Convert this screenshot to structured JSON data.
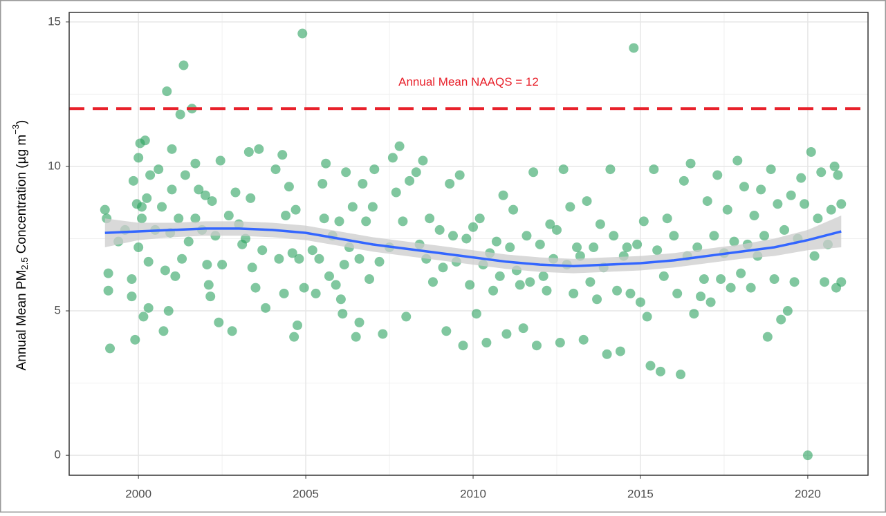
{
  "chart_data": {
    "type": "scatter",
    "ylabel": {
      "text": "Annual Mean PM",
      "sub": "2.5",
      "text2": " Concentration (µg m",
      "sup": "−3",
      "text3": ")"
    },
    "annotation": {
      "text": "Annual Mean NAAQS = 12",
      "value": 12,
      "color": "#e8202a"
    },
    "xlim": [
      1997.93,
      2021.8
    ],
    "ylim": [
      -0.69,
      15.33
    ],
    "xticks": [
      2000,
      2005,
      2010,
      2015,
      2020
    ],
    "yticks": [
      0,
      5,
      10,
      15
    ],
    "minor_xticks": [
      2002.5,
      2007.5,
      2012.5,
      2017.5
    ],
    "minor_yticks": [
      2.5,
      7.5,
      12.5
    ],
    "grid": true,
    "series": [
      {
        "color": "#2ca25f",
        "x": [
          1999.0,
          1999.05,
          1999.1,
          1999.1,
          1999.15,
          1999.4,
          1999.6,
          1999.8,
          1999.8,
          1999.85,
          1999.9,
          1999.95,
          2000.0,
          2000.0,
          2000.05,
          2000.1,
          2000.1,
          2000.15,
          2000.2,
          2000.25,
          2000.3,
          2000.3,
          2000.35,
          2000.5,
          2000.6,
          2000.7,
          2000.75,
          2000.8,
          2000.85,
          2000.9,
          2000.95,
          2001.0,
          2001.0,
          2001.1,
          2001.2,
          2001.25,
          2001.3,
          2001.35,
          2001.4,
          2001.5,
          2001.6,
          2001.7,
          2001.7,
          2001.8,
          2001.9,
          2002.0,
          2002.05,
          2002.1,
          2002.15,
          2002.2,
          2002.3,
          2002.4,
          2002.45,
          2002.5,
          2002.7,
          2002.8,
          2002.9,
          2003.0,
          2003.1,
          2003.2,
          2003.3,
          2003.35,
          2003.4,
          2003.5,
          2003.6,
          2003.7,
          2003.8,
          2004.1,
          2004.2,
          2004.3,
          2004.35,
          2004.4,
          2004.5,
          2004.6,
          2004.65,
          2004.7,
          2004.75,
          2004.8,
          2004.9,
          2004.95,
          2005.2,
          2005.3,
          2005.4,
          2005.5,
          2005.55,
          2005.6,
          2005.7,
          2005.8,
          2005.9,
          2006.0,
          2006.05,
          2006.1,
          2006.15,
          2006.2,
          2006.3,
          2006.4,
          2006.5,
          2006.6,
          2006.6,
          2006.7,
          2006.8,
          2006.9,
          2007.0,
          2007.05,
          2007.2,
          2007.3,
          2007.5,
          2007.6,
          2007.7,
          2007.8,
          2007.9,
          2008.0,
          2008.1,
          2008.3,
          2008.4,
          2008.5,
          2008.6,
          2008.7,
          2008.8,
          2009.0,
          2009.1,
          2009.2,
          2009.3,
          2009.4,
          2009.5,
          2009.6,
          2009.7,
          2009.8,
          2009.9,
          2010.0,
          2010.1,
          2010.2,
          2010.3,
          2010.4,
          2010.5,
          2010.6,
          2010.7,
          2010.8,
          2010.9,
          2011.0,
          2011.1,
          2011.2,
          2011.3,
          2011.4,
          2011.5,
          2011.6,
          2011.7,
          2011.8,
          2011.9,
          2012.0,
          2012.1,
          2012.2,
          2012.3,
          2012.4,
          2012.5,
          2012.6,
          2012.7,
          2012.8,
          2012.9,
          2013.0,
          2013.1,
          2013.2,
          2013.3,
          2013.4,
          2013.5,
          2013.6,
          2013.7,
          2013.8,
          2013.9,
          2014.0,
          2014.1,
          2014.2,
          2014.3,
          2014.4,
          2014.5,
          2014.6,
          2014.7,
          2014.8,
          2014.9,
          2015.0,
          2015.1,
          2015.2,
          2015.3,
          2015.4,
          2015.5,
          2015.6,
          2015.7,
          2015.8,
          2016.0,
          2016.1,
          2016.2,
          2016.3,
          2016.4,
          2016.5,
          2016.6,
          2016.7,
          2016.8,
          2016.9,
          2017.0,
          2017.1,
          2017.2,
          2017.3,
          2017.4,
          2017.5,
          2017.6,
          2017.7,
          2017.8,
          2017.9,
          2018.0,
          2018.1,
          2018.2,
          2018.3,
          2018.4,
          2018.5,
          2018.6,
          2018.7,
          2018.8,
          2018.9,
          2019.0,
          2019.1,
          2019.2,
          2019.3,
          2019.4,
          2019.5,
          2019.6,
          2019.7,
          2019.8,
          2019.9,
          2020.0,
          2020.1,
          2020.2,
          2020.3,
          2020.4,
          2020.5,
          2020.6,
          2020.7,
          2020.8,
          2020.85,
          2020.9,
          2021.0,
          2021.0
        ],
        "values": [
          8.5,
          8.2,
          6.3,
          5.7,
          3.7,
          7.4,
          7.8,
          6.1,
          5.5,
          9.5,
          4.0,
          8.7,
          7.2,
          10.3,
          10.8,
          8.6,
          8.2,
          4.8,
          10.9,
          8.9,
          6.7,
          5.1,
          9.7,
          7.8,
          9.9,
          8.6,
          4.3,
          6.4,
          12.6,
          5.0,
          7.7,
          10.6,
          9.2,
          6.2,
          8.2,
          11.8,
          6.8,
          13.5,
          9.7,
          7.4,
          12.0,
          10.1,
          8.2,
          9.2,
          7.8,
          9.0,
          6.6,
          5.9,
          5.5,
          8.8,
          7.6,
          4.6,
          10.2,
          6.6,
          8.3,
          4.3,
          9.1,
          8.0,
          7.3,
          7.5,
          10.5,
          8.9,
          6.5,
          5.8,
          10.6,
          7.1,
          5.1,
          9.9,
          6.8,
          10.4,
          5.6,
          8.3,
          9.3,
          7.0,
          4.1,
          8.5,
          4.5,
          6.8,
          14.6,
          5.8,
          7.1,
          5.6,
          6.8,
          9.4,
          8.2,
          10.1,
          6.2,
          7.6,
          5.9,
          8.1,
          5.4,
          4.9,
          6.6,
          9.8,
          7.2,
          8.6,
          4.1,
          6.8,
          4.6,
          9.4,
          8.1,
          6.1,
          8.6,
          9.9,
          6.7,
          4.2,
          7.2,
          10.3,
          9.1,
          10.7,
          8.1,
          4.8,
          9.5,
          9.8,
          7.3,
          10.2,
          6.8,
          8.2,
          6.0,
          7.8,
          6.5,
          4.3,
          9.4,
          7.6,
          6.7,
          9.7,
          3.8,
          7.5,
          5.9,
          7.9,
          4.9,
          8.2,
          6.6,
          3.9,
          7.0,
          5.7,
          7.4,
          6.2,
          9.0,
          4.2,
          7.2,
          8.5,
          6.4,
          5.9,
          4.4,
          7.6,
          6.0,
          9.8,
          3.8,
          7.3,
          6.2,
          5.7,
          8.0,
          6.8,
          7.8,
          3.9,
          9.9,
          6.6,
          8.6,
          5.6,
          7.2,
          6.9,
          4.0,
          8.8,
          6.0,
          7.2,
          5.4,
          8.0,
          6.5,
          3.5,
          9.9,
          7.6,
          5.7,
          3.6,
          6.9,
          7.2,
          5.6,
          14.1,
          7.3,
          5.3,
          8.1,
          4.8,
          3.1,
          9.9,
          7.1,
          2.9,
          6.2,
          8.2,
          7.6,
          5.6,
          2.8,
          9.5,
          6.9,
          10.1,
          4.9,
          7.2,
          5.5,
          6.1,
          8.8,
          5.3,
          7.6,
          9.7,
          6.1,
          7.0,
          8.5,
          5.8,
          7.4,
          10.2,
          6.3,
          9.3,
          7.3,
          5.8,
          8.3,
          6.9,
          9.2,
          7.6,
          4.1,
          9.9,
          6.1,
          8.7,
          4.7,
          7.8,
          5.0,
          9.0,
          6.0,
          7.5,
          9.6,
          8.7,
          0.0,
          10.5,
          6.9,
          8.2,
          9.8,
          6.0,
          7.3,
          8.5,
          10.0,
          5.8,
          9.7,
          6.0,
          8.7
        ]
      }
    ],
    "smooth": {
      "color": "#3366ff",
      "band_color": "#cccccc",
      "x": [
        1999,
        2000,
        2001,
        2002,
        2003,
        2004,
        2005,
        2006,
        2007,
        2008,
        2009,
        2010,
        2011,
        2012,
        2013,
        2014,
        2015,
        2016,
        2017,
        2018,
        2019,
        2020,
        2021
      ],
      "values": [
        7.7,
        7.75,
        7.8,
        7.85,
        7.85,
        7.8,
        7.7,
        7.5,
        7.3,
        7.15,
        7.0,
        6.85,
        6.7,
        6.6,
        6.55,
        6.6,
        6.65,
        6.75,
        6.9,
        7.05,
        7.2,
        7.45,
        7.75
      ],
      "lower": [
        7.2,
        7.45,
        7.55,
        7.6,
        7.6,
        7.55,
        7.45,
        7.25,
        7.05,
        6.9,
        6.75,
        6.6,
        6.45,
        6.35,
        6.3,
        6.35,
        6.4,
        6.5,
        6.65,
        6.8,
        6.9,
        7.1,
        7.2
      ],
      "upper": [
        8.2,
        8.05,
        8.05,
        8.1,
        8.1,
        8.05,
        7.95,
        7.75,
        7.55,
        7.4,
        7.25,
        7.1,
        6.95,
        6.85,
        6.8,
        6.85,
        6.9,
        7.0,
        7.15,
        7.3,
        7.5,
        7.8,
        8.3
      ]
    }
  }
}
